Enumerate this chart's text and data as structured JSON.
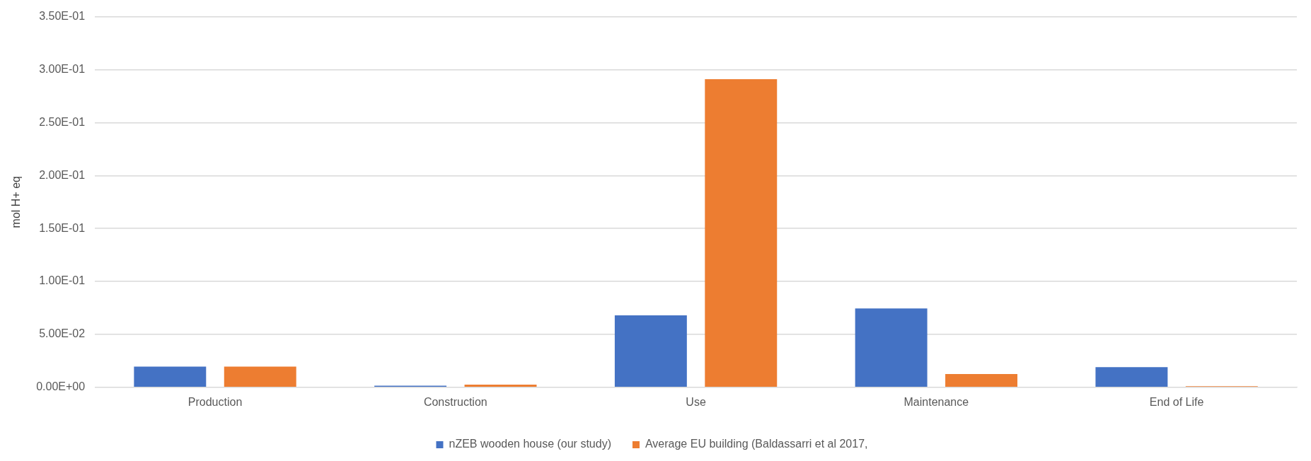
{
  "chart_data": {
    "type": "bar",
    "ylabel": "mol H+ eq",
    "categories": [
      "Production",
      "Construction",
      "Use",
      "Maintenance",
      "End of Life"
    ],
    "series": [
      {
        "name": "nZEB wooden house (our study)",
        "color": "#4472c4",
        "values": [
          0.0195,
          0.0015,
          0.068,
          0.0745,
          0.019
        ]
      },
      {
        "name": "Average EU building (Baldassarri et al 2017,",
        "color": "#ed7d31",
        "values": [
          0.0195,
          0.0025,
          0.291,
          0.0125,
          0.001
        ]
      }
    ],
    "ylim": [
      0,
      0.35
    ],
    "yticks": [
      {
        "value": 0,
        "label": "0.00E+00"
      },
      {
        "value": 0.05,
        "label": "5.00E-02"
      },
      {
        "value": 0.1,
        "label": "1.00E-01"
      },
      {
        "value": 0.15,
        "label": "1.50E-01"
      },
      {
        "value": 0.2,
        "label": "2.00E-01"
      },
      {
        "value": 0.25,
        "label": "2.50E-01"
      },
      {
        "value": 0.3,
        "label": "3.00E-01"
      },
      {
        "value": 0.35,
        "label": "3.50E-01"
      }
    ],
    "grid": "y",
    "legend": "bottom"
  }
}
